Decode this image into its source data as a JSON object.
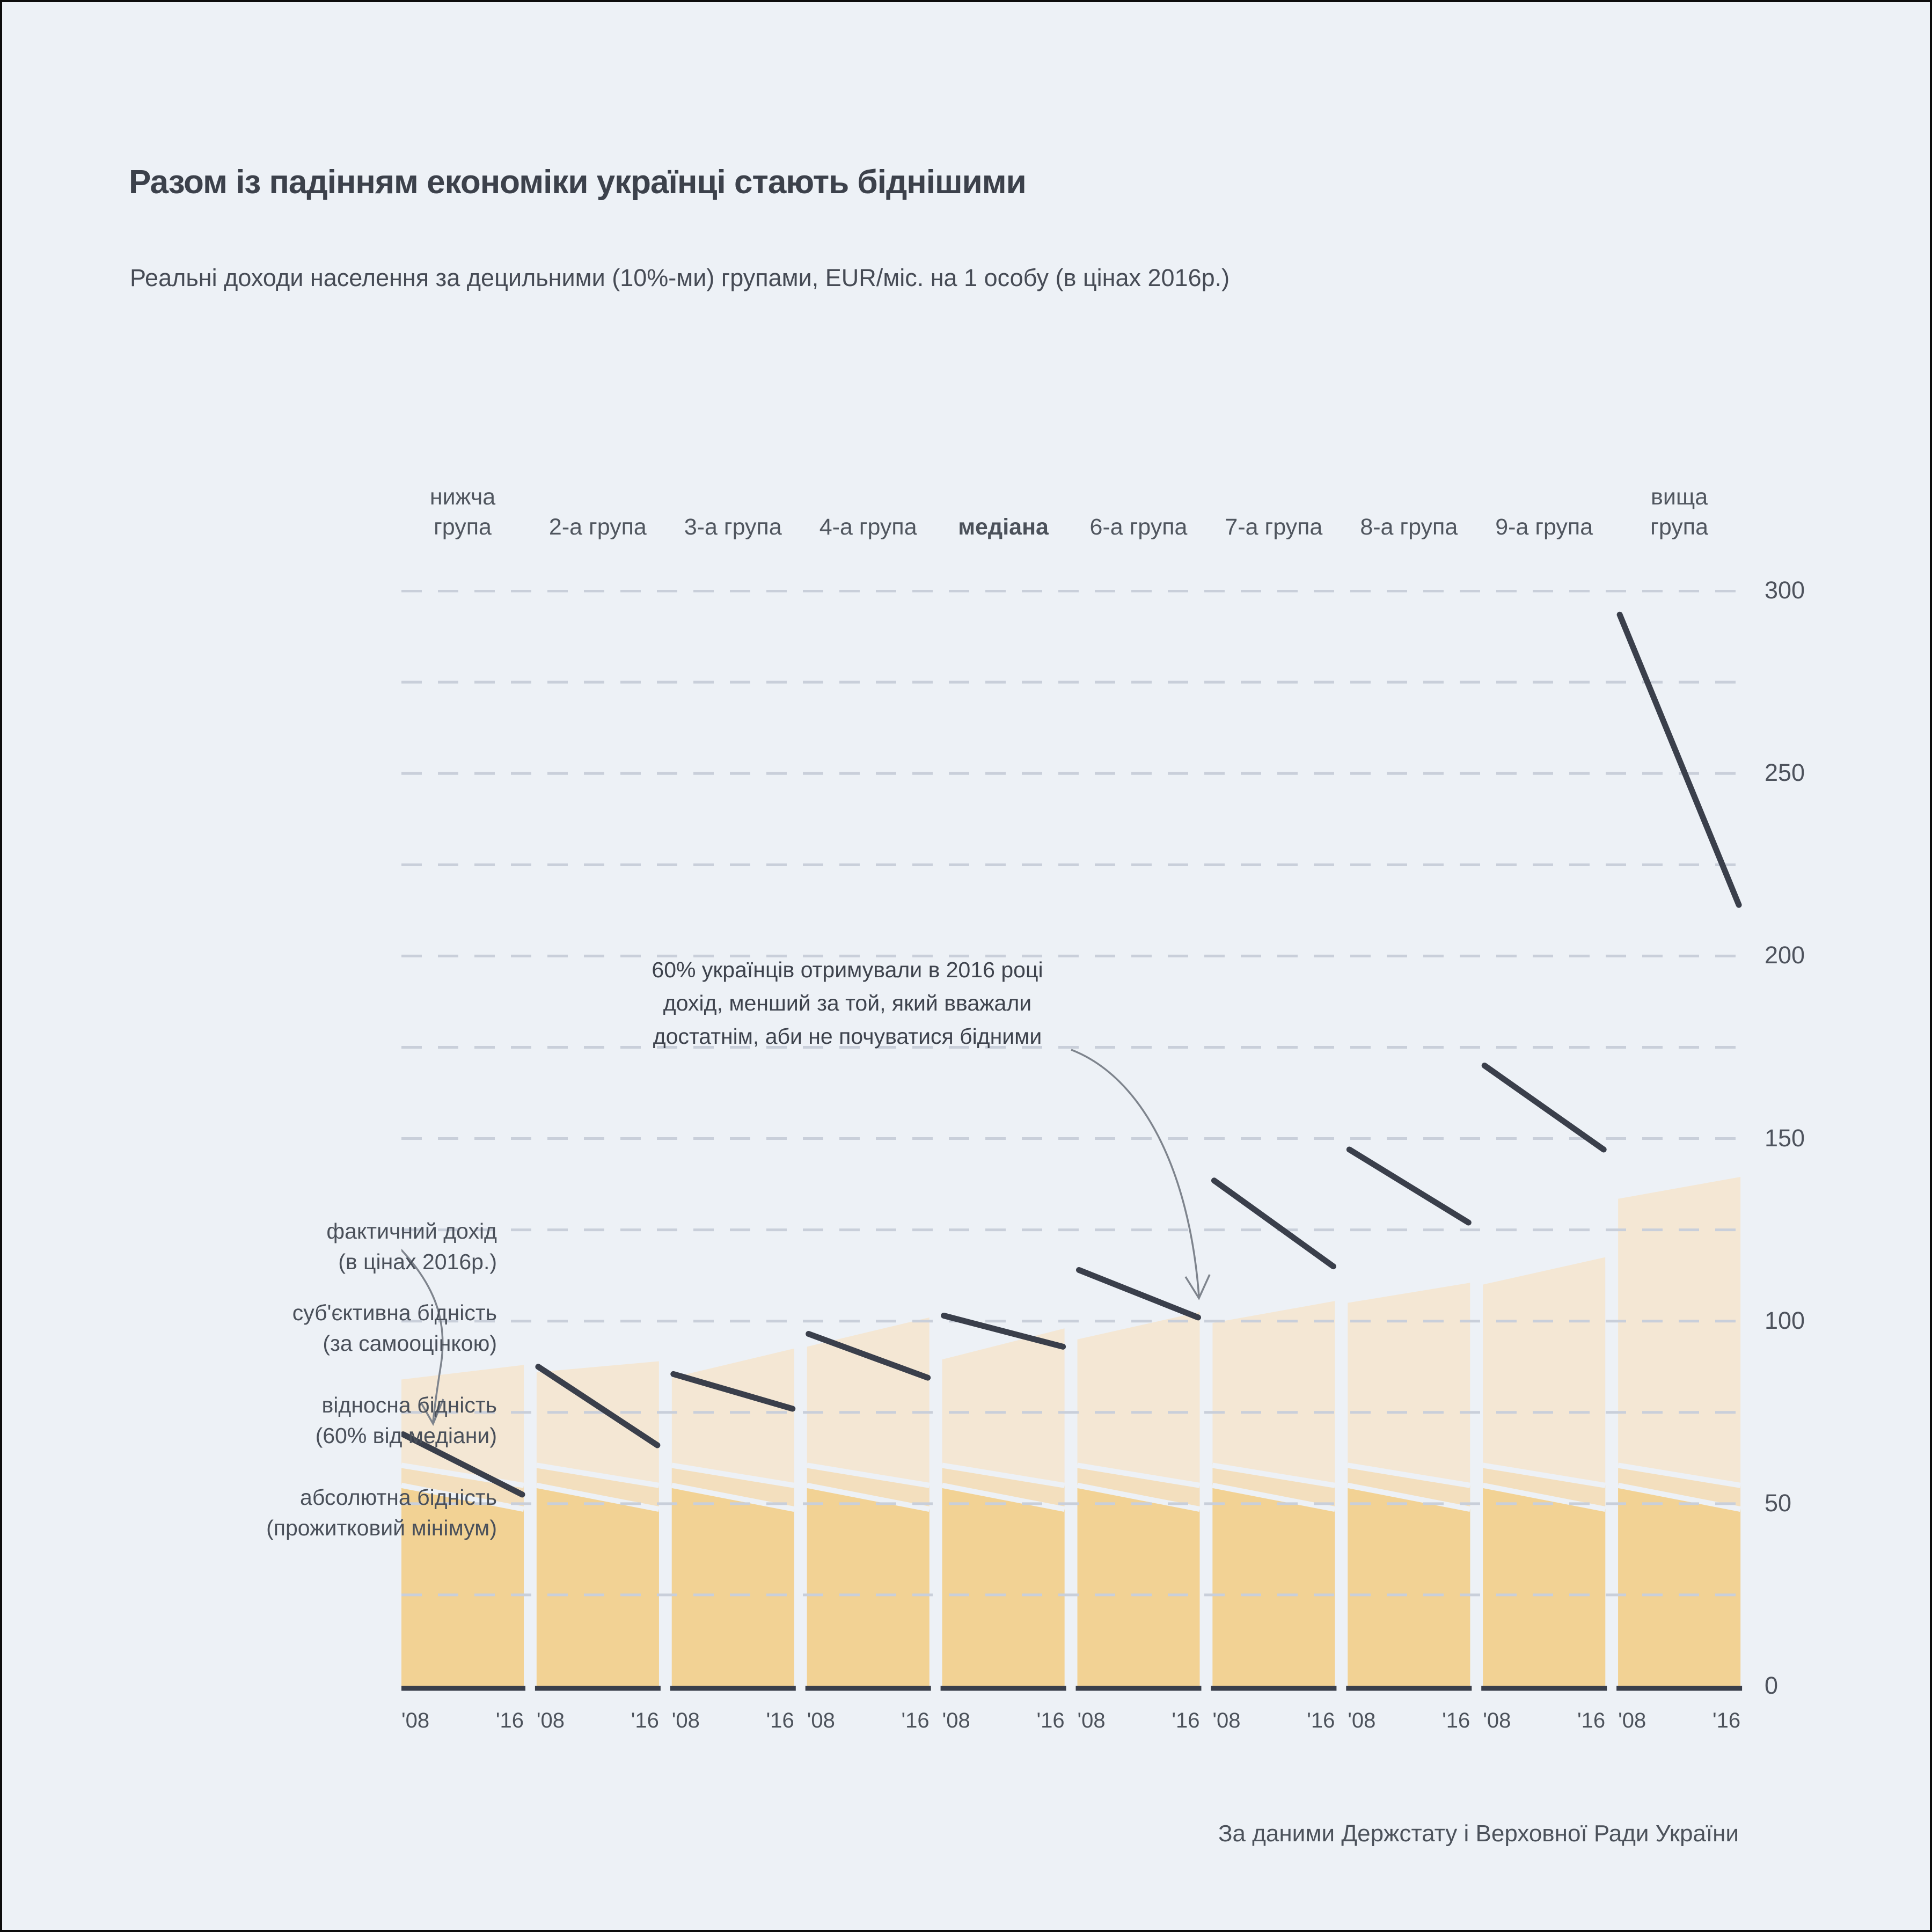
{
  "title": "Разом із падінням економіки українці стають біднішими",
  "subtitle": "Реальні доходи населення за децильними (10%-ми) групами, EUR/міс. на 1 особу (в цінах 2016р.)",
  "source": "За даними Держстату і Верховної Ради України",
  "annotation": {
    "lines": [
      "60% українців отримували в 2016 році",
      "дохід,  менший за той,  який вважали",
      "достатнім, аби не почуватися бідними"
    ]
  },
  "legend": {
    "items": [
      {
        "name": "actual-income",
        "lines": [
          "фактичний дохід",
          "(в цінах 2016р.)"
        ]
      },
      {
        "name": "subjective-poverty",
        "lines": [
          "суб'єктивна бідність",
          "(за самооцінкою)"
        ]
      },
      {
        "name": "relative-poverty",
        "lines": [
          "відносна бідність",
          "(60% від медіани)"
        ]
      },
      {
        "name": "absolute-poverty",
        "lines": [
          "абсолютна бідність",
          "(прожитковий мінімум)"
        ]
      }
    ]
  },
  "chart_data": {
    "type": "area",
    "x_tick_labels": [
      "'08",
      "'16"
    ],
    "ylim": [
      0,
      300
    ],
    "yticks": [
      0,
      50,
      100,
      150,
      200,
      250,
      300
    ],
    "grid_step": 25,
    "grid_on": true,
    "units": "EUR/міс. на 1 особу",
    "groups": [
      {
        "label": "нижча група",
        "two_line": true,
        "bold": false,
        "income": [
          69,
          52.5
        ],
        "subjective": [
          84,
          88
        ]
      },
      {
        "label": "2-а група",
        "two_line": false,
        "bold": false,
        "income": [
          87.5,
          66
        ],
        "subjective": [
          86,
          89
        ]
      },
      {
        "label": "3-а група",
        "two_line": false,
        "bold": false,
        "income": [
          85.5,
          76
        ],
        "subjective": [
          84.5,
          92.5
        ]
      },
      {
        "label": "4-а група",
        "two_line": false,
        "bold": false,
        "income": [
          96.5,
          84.5
        ],
        "subjective": [
          93,
          101
        ]
      },
      {
        "label": "медіана",
        "two_line": false,
        "bold": true,
        "income": [
          101.5,
          93
        ],
        "subjective": [
          89.5,
          98
        ]
      },
      {
        "label": "6-а група",
        "two_line": false,
        "bold": false,
        "income": [
          114,
          101
        ],
        "subjective": [
          95,
          102.5
        ]
      },
      {
        "label": "7-а група",
        "two_line": false,
        "bold": false,
        "income": [
          138.5,
          115
        ],
        "subjective": [
          99.5,
          105.5
        ]
      },
      {
        "label": "8-а група",
        "two_line": false,
        "bold": false,
        "income": [
          147,
          127
        ],
        "subjective": [
          105,
          110.5
        ]
      },
      {
        "label": "9-а група",
        "two_line": false,
        "bold": false,
        "income": [
          170,
          147
        ],
        "subjective": [
          110,
          117.5
        ]
      },
      {
        "label": "вища група",
        "two_line": true,
        "bold": false,
        "income": [
          293.5,
          214
        ],
        "subjective": [
          133.5,
          139.5
        ]
      }
    ],
    "relative_poverty": [
      60.5,
      55
    ],
    "absolute_poverty": [
      55,
      48.5
    ],
    "colors": {
      "background": "#edf1f6",
      "subjective_area": "#f4e7d4",
      "relative_area": "#f3dfbe",
      "absolute_area": "#f2d294",
      "income_line": "#3a3f4b",
      "baseline": "#3a3f4b",
      "grid_dash": "#c9cfda",
      "separator": "#edf1f6",
      "arrow": "#7e848d"
    }
  }
}
